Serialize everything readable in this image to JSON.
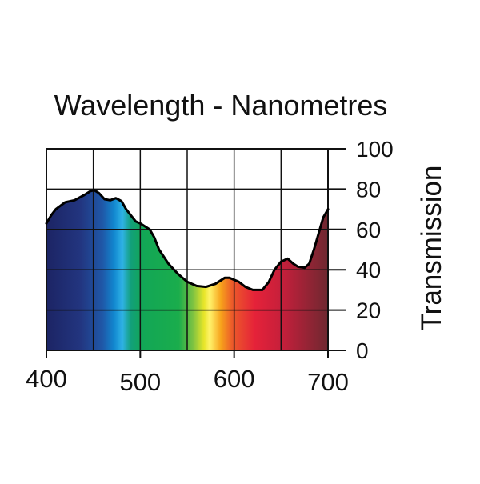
{
  "chart_data": {
    "type": "area",
    "title": "Wavelength - Nanometres",
    "xlabel": "",
    "ylabel": "Transmission",
    "xlim": [
      400,
      700
    ],
    "ylim": [
      0,
      100
    ],
    "x_ticks": [
      400,
      500,
      600,
      700
    ],
    "x_tick_labels": [
      "400",
      "500",
      "600",
      "700"
    ],
    "x_grid": [
      400,
      450,
      500,
      550,
      600,
      650,
      700
    ],
    "y_ticks": [
      0,
      20,
      40,
      60,
      80,
      100
    ],
    "y_tick_labels": [
      "0",
      "20",
      "40",
      "60",
      "80",
      "100"
    ],
    "grid": true,
    "fill": "visible-spectrum gradient",
    "series": [
      {
        "x": [
          400,
          405,
          410,
          420,
          430,
          440,
          447,
          451,
          456,
          462,
          468,
          474,
          480,
          485,
          490,
          495,
          500,
          510,
          515,
          520,
          530,
          540,
          550,
          560,
          570,
          580,
          590,
          595,
          600,
          605,
          612,
          620,
          630,
          637,
          643,
          650,
          657,
          663,
          668,
          675,
          680,
          685,
          690,
          695,
          700
        ],
        "y": [
          63,
          67,
          70,
          73.5,
          74.5,
          77,
          79,
          79.5,
          78,
          75,
          74.5,
          75.5,
          74,
          70,
          67,
          64,
          63,
          60,
          56,
          50,
          43,
          38,
          34,
          32,
          31.5,
          33,
          36,
          36,
          35,
          34,
          31.5,
          30,
          30,
          34,
          40,
          44,
          45.5,
          43,
          41.5,
          41,
          43,
          50,
          58,
          66,
          70
        ]
      }
    ]
  }
}
